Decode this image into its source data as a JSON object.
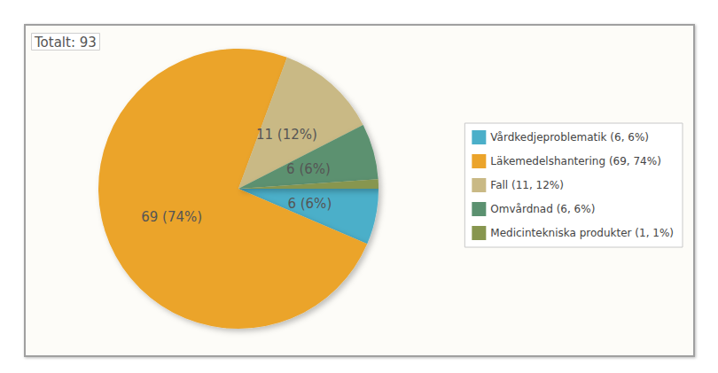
{
  "chart_data": {
    "type": "pie",
    "title": "Totalt: 93",
    "categories": [
      "Vårdkedjeproblematik (6, 6%)",
      "Läkemedelshantering (69, 74%)",
      "Fall (11, 12%)",
      "Omvårdnad (6, 6%)",
      "Medicintekniska produkter (1, 1%)"
    ],
    "values": [
      6,
      69,
      11,
      6,
      1
    ],
    "value_labels": [
      "6 (6%)",
      "69 (74%)",
      "11 (12%)",
      "6 (6%)",
      null
    ],
    "colors": [
      "#4bafc9",
      "#eba42b",
      "#c9b985",
      "#5b9170",
      "#87964f"
    ],
    "data_labels": true,
    "legend": "right"
  }
}
